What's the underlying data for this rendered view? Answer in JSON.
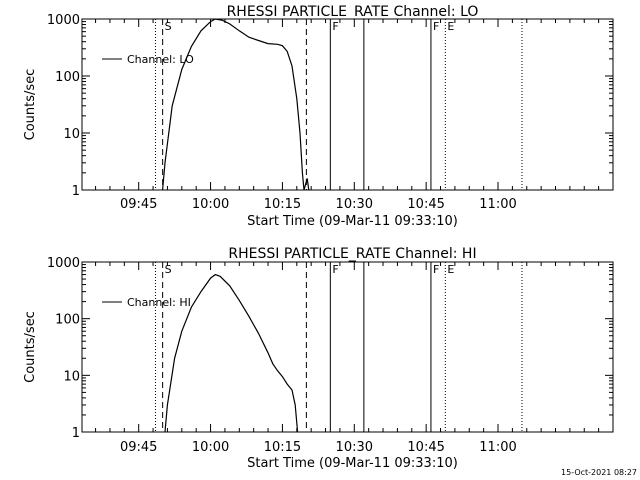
{
  "chart_data": [
    {
      "type": "line",
      "title": "RHESSI PARTICLE_RATE Channel: LO",
      "xlabel": "Start Time (09-Mar-11 09:33:10)",
      "ylabel": "Counts/sec",
      "yscale": "log",
      "ylim": [
        1,
        1000
      ],
      "xlim": [
        "09:33:10",
        "11:24:00"
      ],
      "x_ticks": [
        "09:45",
        "10:00",
        "10:15",
        "10:30",
        "10:45",
        "11:00"
      ],
      "y_ticks": [
        "1",
        "10",
        "100",
        "1000"
      ],
      "legend": {
        "placement": "top-left",
        "entries": [
          "Channel: LO"
        ]
      },
      "markers": [
        {
          "time": "09:48:30",
          "label": "",
          "style": "dotted"
        },
        {
          "time": "09:50:00",
          "label": "S",
          "style": "dashed"
        },
        {
          "time": "10:20:00",
          "label": "",
          "style": "dashed"
        },
        {
          "time": "10:25:00",
          "label": "F",
          "style": "solid"
        },
        {
          "time": "10:32:00",
          "label": "",
          "style": "solid"
        },
        {
          "time": "10:46:00",
          "label": "F",
          "style": "solid"
        },
        {
          "time": "10:49:00",
          "label": "E",
          "style": "dotted"
        },
        {
          "time": "11:05:00",
          "label": "",
          "style": "dotted"
        }
      ],
      "series": [
        {
          "name": "Channel: LO",
          "points": [
            [
              "09:50:00",
              1
            ],
            [
              "09:50:30",
              3
            ],
            [
              "09:52:00",
              30
            ],
            [
              "09:54:00",
              130
            ],
            [
              "09:56:00",
              330
            ],
            [
              "09:58:00",
              620
            ],
            [
              "10:00:00",
              900
            ],
            [
              "10:01:00",
              1000
            ],
            [
              "10:02:30",
              950
            ],
            [
              "10:04:00",
              820
            ],
            [
              "10:06:00",
              620
            ],
            [
              "10:08:00",
              480
            ],
            [
              "10:10:00",
              420
            ],
            [
              "10:12:00",
              370
            ],
            [
              "10:14:00",
              360
            ],
            [
              "10:15:00",
              340
            ],
            [
              "10:16:00",
              270
            ],
            [
              "10:17:00",
              150
            ],
            [
              "10:18:00",
              40
            ],
            [
              "10:18:40",
              10
            ],
            [
              "10:19:10",
              2
            ],
            [
              "10:19:30",
              1
            ],
            [
              "10:20:10",
              1.6
            ],
            [
              "10:20:30",
              1
            ]
          ]
        }
      ]
    },
    {
      "type": "line",
      "title": "RHESSI PARTICLE_RATE Channel: HI",
      "xlabel": "Start Time (09-Mar-11 09:33:10)",
      "ylabel": "Counts/sec",
      "yscale": "log",
      "ylim": [
        1,
        1000
      ],
      "xlim": [
        "09:33:10",
        "11:24:00"
      ],
      "x_ticks": [
        "09:45",
        "10:00",
        "10:15",
        "10:30",
        "10:45",
        "11:00"
      ],
      "y_ticks": [
        "1",
        "10",
        "100",
        "1000"
      ],
      "legend": {
        "placement": "top-left",
        "entries": [
          "Channel: HI"
        ]
      },
      "markers": [
        {
          "time": "09:48:30",
          "label": "",
          "style": "dotted"
        },
        {
          "time": "09:50:00",
          "label": "S",
          "style": "dashed"
        },
        {
          "time": "10:20:00",
          "label": "",
          "style": "dashed"
        },
        {
          "time": "10:25:00",
          "label": "F",
          "style": "solid"
        },
        {
          "time": "10:32:00",
          "label": "",
          "style": "solid"
        },
        {
          "time": "10:46:00",
          "label": "F",
          "style": "solid"
        },
        {
          "time": "10:49:00",
          "label": "E",
          "style": "dotted"
        },
        {
          "time": "11:05:00",
          "label": "",
          "style": "dotted"
        }
      ],
      "series": [
        {
          "name": "Channel: HI",
          "points": [
            [
              "09:50:30",
              1
            ],
            [
              "09:51:00",
              3
            ],
            [
              "09:52:30",
              20
            ],
            [
              "09:54:00",
              60
            ],
            [
              "09:56:00",
              160
            ],
            [
              "09:58:00",
              300
            ],
            [
              "10:00:00",
              520
            ],
            [
              "10:01:00",
              600
            ],
            [
              "10:02:00",
              560
            ],
            [
              "10:04:00",
              380
            ],
            [
              "10:06:00",
              210
            ],
            [
              "10:08:00",
              110
            ],
            [
              "10:10:00",
              55
            ],
            [
              "10:12:00",
              25
            ],
            [
              "10:13:00",
              16
            ],
            [
              "10:14:00",
              12
            ],
            [
              "10:15:00",
              9.5
            ],
            [
              "10:16:00",
              7
            ],
            [
              "10:17:00",
              5.5
            ],
            [
              "10:17:40",
              3
            ],
            [
              "10:18:10",
              1
            ]
          ]
        }
      ]
    }
  ],
  "footer": {
    "timestamp": "15-Oct-2021 08:27"
  }
}
